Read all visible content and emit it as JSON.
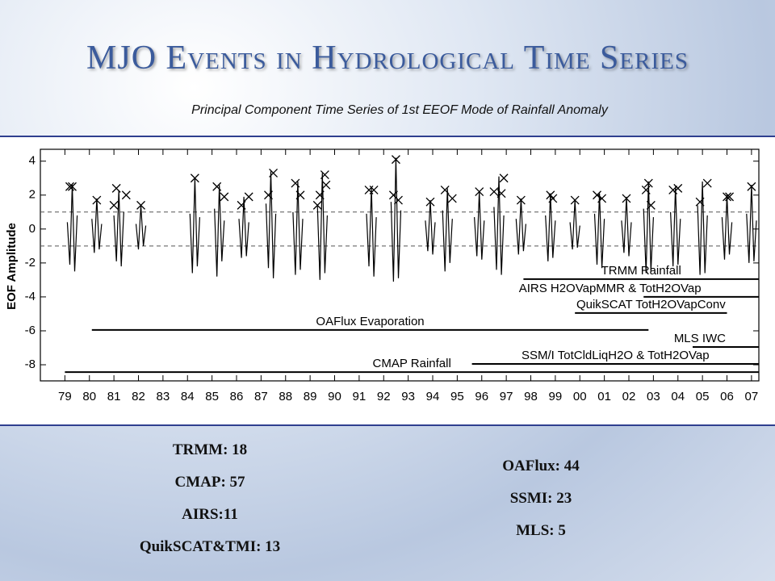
{
  "title": "MJO Events in Hydrological Time Series",
  "subtitle": "Principal Component Time Series of 1st EEOF Mode of Rainfall Anomaly",
  "chart_data": {
    "type": "line",
    "ylabel": "EOF Amplitude",
    "xlim": [
      1978,
      2007.3
    ],
    "ylim": [
      -8.95,
      4.7
    ],
    "xticks": [
      {
        "value": 1979,
        "label": "79"
      },
      {
        "value": 1980,
        "label": "80"
      },
      {
        "value": 1981,
        "label": "81"
      },
      {
        "value": 1982,
        "label": "82"
      },
      {
        "value": 1983,
        "label": "83"
      },
      {
        "value": 1984,
        "label": "84"
      },
      {
        "value": 1985,
        "label": "85"
      },
      {
        "value": 1986,
        "label": "86"
      },
      {
        "value": 1987,
        "label": "87"
      },
      {
        "value": 1988,
        "label": "88"
      },
      {
        "value": 1989,
        "label": "89"
      },
      {
        "value": 1990,
        "label": "90"
      },
      {
        "value": 1991,
        "label": "91"
      },
      {
        "value": 1992,
        "label": "92"
      },
      {
        "value": 1993,
        "label": "93"
      },
      {
        "value": 1994,
        "label": "94"
      },
      {
        "value": 1995,
        "label": "95"
      },
      {
        "value": 1996,
        "label": "96"
      },
      {
        "value": 1997,
        "label": "97"
      },
      {
        "value": 1998,
        "label": "98"
      },
      {
        "value": 1999,
        "label": "99"
      },
      {
        "value": 2000,
        "label": "00"
      },
      {
        "value": 2001,
        "label": "01"
      },
      {
        "value": 2002,
        "label": "02"
      },
      {
        "value": 2003,
        "label": "03"
      },
      {
        "value": 2004,
        "label": "04"
      },
      {
        "value": 2005,
        "label": "05"
      },
      {
        "value": 2006,
        "label": "06"
      },
      {
        "value": 2007,
        "label": "07"
      }
    ],
    "yticks": [
      -8,
      -6,
      -4,
      -2,
      0,
      2,
      4
    ],
    "hlines": [
      1,
      -1
    ],
    "series": [
      {
        "type": "line",
        "color": "#000000",
        "x": [
          1979.1,
          1979.2,
          1979.3,
          1979.4,
          1979.5,
          null,
          1980.1,
          1980.2,
          1980.3,
          1980.4,
          1980.5,
          null,
          1981.0,
          1981.1,
          1981.2,
          1981.3,
          1981.4,
          null,
          1981.9,
          1982.0,
          1982.1,
          1982.2,
          1982.3,
          null,
          1984.1,
          1984.2,
          1984.3,
          1984.4,
          1984.5,
          null,
          1985.1,
          1985.2,
          1985.3,
          1985.4,
          1985.5,
          null,
          1986.1,
          1986.2,
          1986.3,
          1986.4,
          1986.5,
          null,
          1987.2,
          1987.3,
          1987.4,
          1987.5,
          1987.6,
          null,
          1988.3,
          1988.4,
          1988.5,
          1988.6,
          1988.7,
          null,
          1989.3,
          1989.4,
          1989.5,
          1989.6,
          1989.7,
          null,
          1991.3,
          1991.4,
          1991.5,
          1991.6,
          1991.7,
          null,
          1992.3,
          1992.4,
          1992.5,
          1992.6,
          1992.7,
          null,
          1993.7,
          1993.8,
          1993.9,
          1994.0,
          1994.1,
          null,
          1994.4,
          1994.5,
          1994.6,
          1994.7,
          1994.8,
          null,
          1995.7,
          1995.8,
          1995.9,
          1996.0,
          1996.1,
          null,
          1996.5,
          1996.6,
          1996.7,
          1996.8,
          1996.9,
          null,
          1997.4,
          1997.5,
          1997.6,
          1997.7,
          1997.8,
          null,
          1998.6,
          1998.7,
          1998.8,
          1998.9,
          1999.0,
          null,
          1999.6,
          1999.7,
          1999.8,
          1999.9,
          2000.0,
          null,
          2000.6,
          2000.7,
          2000.8,
          2000.9,
          2001.0,
          null,
          2001.7,
          2001.8,
          2001.9,
          2002.0,
          2002.1,
          null,
          2002.6,
          2002.7,
          2002.8,
          2002.9,
          2003.0,
          null,
          2003.7,
          2003.8,
          2003.9,
          2004.0,
          2004.1,
          null,
          2004.8,
          2004.9,
          2005.0,
          2005.1,
          2005.2,
          null,
          2005.8,
          2005.9,
          2006.0,
          2006.1,
          2006.2,
          null,
          2006.8,
          2006.9,
          2007.0,
          2007.1,
          2007.2
        ],
        "values": [
          0.4,
          -2.1,
          2.6,
          -2.5,
          0.8,
          null,
          0.6,
          -1.4,
          1.8,
          -1.2,
          0.3,
          null,
          0.8,
          -1.9,
          2.3,
          -2.2,
          1.0,
          null,
          0.3,
          -1.2,
          1.4,
          -1.0,
          0.2,
          null,
          0.9,
          -2.6,
          3.0,
          -2.2,
          0.7,
          null,
          1.2,
          -2.8,
          2.6,
          -1.9,
          0.5,
          null,
          0.6,
          -1.7,
          1.9,
          -1.6,
          0.4,
          null,
          1.5,
          -2.3,
          3.4,
          -2.9,
          0.9,
          null,
          1.0,
          -2.7,
          2.8,
          -2.4,
          0.6,
          null,
          1.4,
          -3.0,
          3.3,
          -2.6,
          0.8,
          null,
          0.9,
          -2.2,
          2.4,
          -2.8,
          0.7,
          null,
          1.6,
          -3.1,
          4.2,
          -2.9,
          1.1,
          null,
          0.5,
          -1.3,
          1.7,
          -1.5,
          0.4,
          null,
          1.1,
          -2.5,
          2.4,
          -2.0,
          0.6,
          null,
          0.7,
          -1.6,
          2.2,
          -1.8,
          0.5,
          null,
          1.3,
          -2.4,
          3.1,
          -2.7,
          0.8,
          null,
          0.6,
          -1.5,
          1.8,
          -1.3,
          0.3,
          null,
          0.8,
          -1.9,
          2.1,
          -1.7,
          0.5,
          null,
          0.4,
          -1.2,
          1.7,
          -1.1,
          0.2,
          null,
          0.9,
          -2.1,
          2.1,
          -2.3,
          0.6,
          null,
          0.5,
          -1.4,
          1.9,
          -1.6,
          0.4,
          null,
          1.2,
          -2.6,
          2.8,
          -2.5,
          0.7,
          null,
          1.0,
          -2.2,
          2.5,
          -2.1,
          0.6,
          null,
          1.4,
          -2.7,
          2.8,
          -2.6,
          0.8,
          null,
          0.7,
          -1.8,
          2.0,
          -1.5,
          0.4,
          null,
          0.9,
          -2.0,
          2.6,
          -1.9,
          0.5
        ]
      },
      {
        "type": "scatter",
        "color": "#000000",
        "x": [
          1979.2,
          1979.3,
          1980.3,
          1981.1,
          1981.0,
          1981.5,
          1982.1,
          1984.3,
          1985.2,
          1985.5,
          1986.2,
          1986.5,
          1987.3,
          1987.5,
          1988.4,
          1988.6,
          1989.3,
          1989.4,
          1989.6,
          1989.65,
          1991.4,
          1991.6,
          1992.5,
          1992.4,
          1992.6,
          1993.9,
          1994.5,
          1994.8,
          1995.9,
          1996.5,
          1996.9,
          1996.8,
          1997.6,
          1998.8,
          1998.9,
          1999.8,
          2000.7,
          2000.9,
          2001.9,
          2002.7,
          2002.8,
          2002.9,
          2003.8,
          2004.0,
          2004.9,
          2005.2,
          2006.0,
          2006.1,
          2007.0
        ],
        "values": [
          2.5,
          2.5,
          1.7,
          2.4,
          1.4,
          2.0,
          1.4,
          3.0,
          2.5,
          1.9,
          1.4,
          1.9,
          2.0,
          3.3,
          2.7,
          2.0,
          1.4,
          2.0,
          3.2,
          2.6,
          2.3,
          2.3,
          4.1,
          2.0,
          1.7,
          1.6,
          2.3,
          1.8,
          2.2,
          2.2,
          3.0,
          2.1,
          1.7,
          2.0,
          1.8,
          1.7,
          2.0,
          1.8,
          1.8,
          2.3,
          2.7,
          1.4,
          2.3,
          2.4,
          1.6,
          2.7,
          1.9,
          1.9,
          2.5
        ]
      }
    ],
    "records": [
      {
        "label": "TRMM Rainfall",
        "start": 1997.7,
        "end": 2007.3,
        "level": -2.95,
        "color": "#000000"
      },
      {
        "label": "AIRS H2OVapMMR & TotH2OVap",
        "start": 2002.6,
        "end": 2007.3,
        "level": -4.0,
        "color": "#000000"
      },
      {
        "label": "QuikSCAT TotH2OVapConv",
        "start": 1999.8,
        "end": 2006.0,
        "level": -4.95,
        "color": "#000000"
      },
      {
        "label": "OAFlux Evaporation",
        "start": 1980.1,
        "end": 2002.8,
        "level": -5.95,
        "color": "#000000"
      },
      {
        "label": "MLS IWC",
        "start": 2004.6,
        "end": 2007.3,
        "level": -6.95,
        "color": "#000000"
      },
      {
        "label": "SSM/I TotCldLiqH2O & TotH2OVap",
        "start": 1995.6,
        "end": 2007.3,
        "level": -7.95,
        "color": "#000000"
      },
      {
        "label": "CMAP Rainfall",
        "start": 1979,
        "end": 2007.3,
        "level": -8.43,
        "color": "#000000"
      }
    ]
  },
  "summary": {
    "left": [
      "TRMM: 18",
      "CMAP: 57",
      "AIRS:11",
      "QuikSCAT&TMI: 13"
    ],
    "right": [
      "OAFlux: 44",
      "SSMI: 23",
      "MLS: 5"
    ]
  }
}
